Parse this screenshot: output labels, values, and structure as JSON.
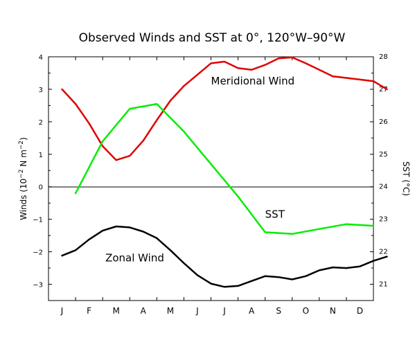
{
  "chart_data": {
    "type": "line",
    "title": "Observed Winds and SST at 0°, 120°W–90°W",
    "categories": [
      "J",
      "F",
      "M",
      "A",
      "M",
      "J",
      "J",
      "A",
      "S",
      "O",
      "N",
      "D"
    ],
    "ylabel_left": {
      "base": "Winds (10",
      "sup": "−2",
      "rest": " N m",
      "sup2": "−2",
      "end": ")"
    },
    "ylabel_right": "SST (°C)",
    "ylim_left": [
      -3.5,
      4
    ],
    "ylim_right": [
      20.5,
      28
    ],
    "left_ticks": [
      "−3",
      "−2",
      "−1",
      "0",
      "1",
      "2",
      "3",
      "4"
    ],
    "right_ticks": [
      "21",
      "22",
      "23",
      "24",
      "25",
      "26",
      "27",
      "28"
    ],
    "zero_line": true,
    "grid": false,
    "series": [
      {
        "name": "Meridional Wind",
        "axis": "left",
        "color": "#e00000",
        "label_month": 6.0,
        "label_value": 3.15,
        "x": [
          0.5,
          1.0,
          1.5,
          2.0,
          2.5,
          3.0,
          3.5,
          4.0,
          4.5,
          5.0,
          5.5,
          6.0,
          6.5,
          7.0,
          7.5,
          8.0,
          8.5,
          9.0,
          9.5,
          10.0,
          10.5,
          11.0,
          11.5,
          12.0,
          12.5
        ],
        "values": [
          3.0,
          2.55,
          1.95,
          1.25,
          0.82,
          0.95,
          1.42,
          2.05,
          2.65,
          3.1,
          3.45,
          3.8,
          3.85,
          3.65,
          3.6,
          3.75,
          3.95,
          3.98,
          3.8,
          3.6,
          3.4,
          3.35,
          3.3,
          3.25,
          3.0
        ]
      },
      {
        "name": "SST",
        "axis": "right",
        "color": "#00ee00",
        "label_month": 8.0,
        "label_value": 23.05,
        "x": [
          1.0,
          2.0,
          3.0,
          4.0,
          5.0,
          6.0,
          7.0,
          8.0,
          9.0,
          10.0,
          11.0,
          12.0
        ],
        "values": [
          23.8,
          25.4,
          26.4,
          26.55,
          25.7,
          24.7,
          23.7,
          22.6,
          22.55,
          22.7,
          22.85,
          22.8
        ]
      },
      {
        "name": "Zonal Wind",
        "axis": "left",
        "color": "#000000",
        "label_month": 2.1,
        "label_value": -2.3,
        "x": [
          0.5,
          1.0,
          1.5,
          2.0,
          2.5,
          3.0,
          3.5,
          4.0,
          4.5,
          5.0,
          5.5,
          6.0,
          6.5,
          7.0,
          7.5,
          8.0,
          8.5,
          9.0,
          9.5,
          10.0,
          10.5,
          11.0,
          11.5,
          12.0,
          12.5
        ],
        "values": [
          -2.12,
          -1.95,
          -1.62,
          -1.35,
          -1.22,
          -1.25,
          -1.38,
          -1.58,
          -1.95,
          -2.35,
          -2.72,
          -2.98,
          -3.08,
          -3.05,
          -2.9,
          -2.75,
          -2.78,
          -2.85,
          -2.75,
          -2.57,
          -2.48,
          -2.5,
          -2.45,
          -2.28,
          -2.15
        ]
      }
    ]
  }
}
